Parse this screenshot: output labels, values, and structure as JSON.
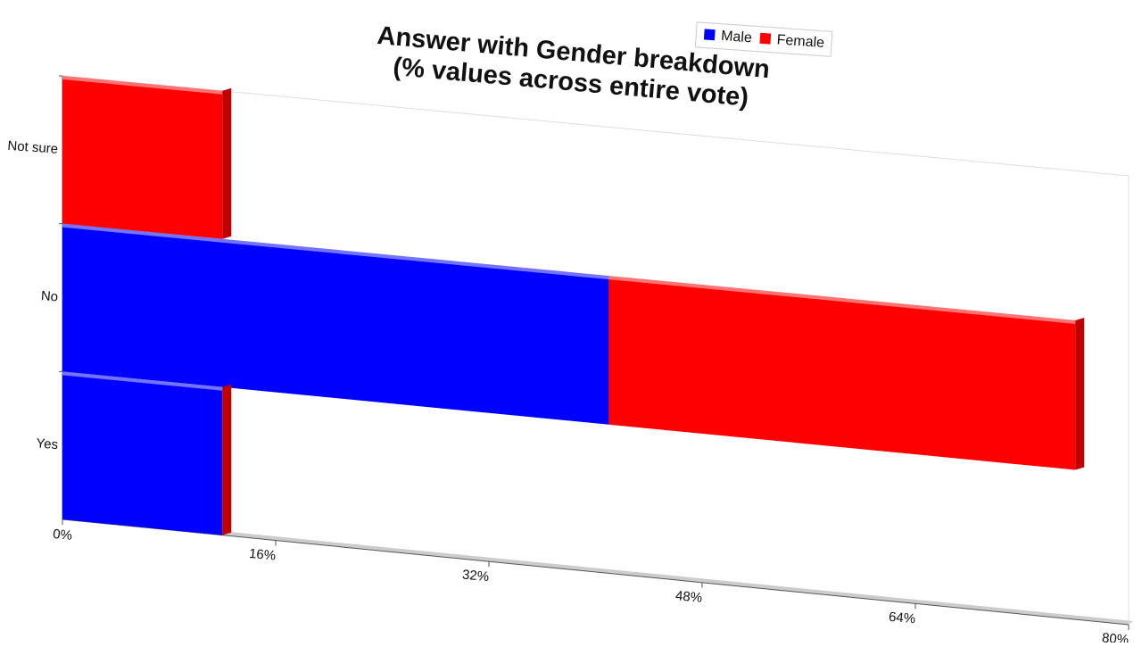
{
  "chart_data": {
    "type": "bar",
    "orientation": "horizontal",
    "stacked": true,
    "title": "Answer with Gender breakdown\n(% values across entire vote)",
    "categories": [
      "Not sure",
      "No",
      "Yes"
    ],
    "series": [
      {
        "name": "Male",
        "color": "#0000ff",
        "values": [
          0,
          41,
          12
        ]
      },
      {
        "name": "Female",
        "color": "#ff0000",
        "values": [
          12,
          35,
          0
        ]
      }
    ],
    "xlim": [
      0,
      80
    ],
    "xticks": [
      {
        "value": 0,
        "label": "0%"
      },
      {
        "value": 16,
        "label": "16%"
      },
      {
        "value": 32,
        "label": "32%"
      },
      {
        "value": 48,
        "label": "48%"
      },
      {
        "value": 64,
        "label": "64%"
      },
      {
        "value": 80,
        "label": "80%"
      }
    ],
    "legend": "top"
  }
}
